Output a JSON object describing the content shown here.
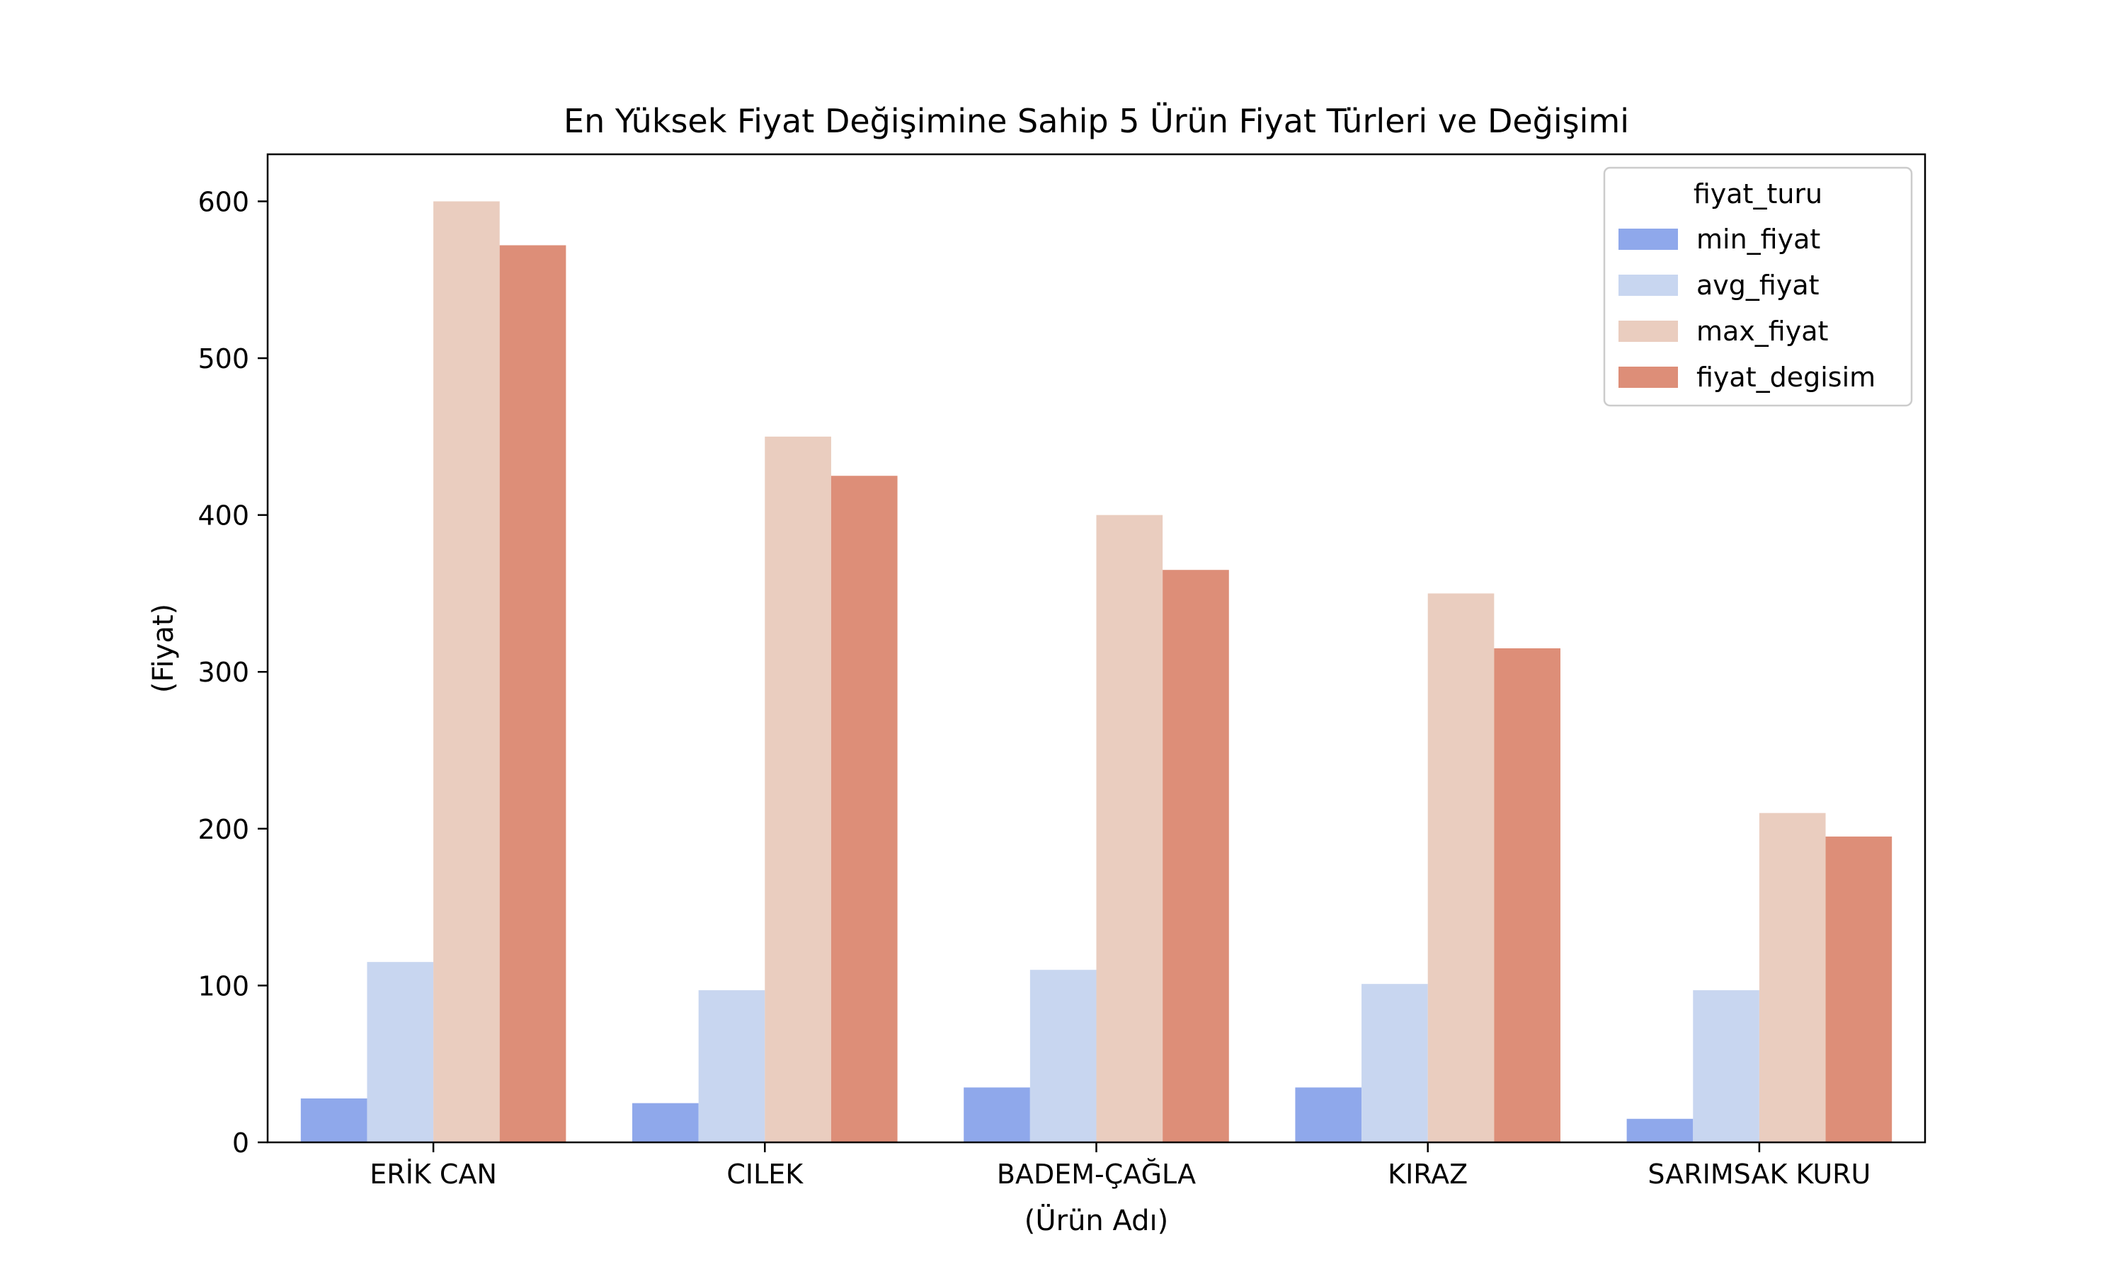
{
  "chart_data": {
    "type": "bar",
    "title": "En Yüksek Fiyat Değişimine Sahip 5 Ürün Fiyat Türleri ve Değişimi",
    "xlabel": "(Ürün Adı)",
    "ylabel": "(Fiyat)",
    "categories": [
      "ERİK  CAN",
      "CILEK",
      "BADEM-ÇAĞLA",
      "KIRAZ",
      "SARIMSAK  KURU"
    ],
    "ylim": [
      0,
      630
    ],
    "yticks": [
      0,
      100,
      200,
      300,
      400,
      500,
      600
    ],
    "grid": false,
    "legend": {
      "title": "fiyat_turu",
      "position": "top-right"
    },
    "series": [
      {
        "name": "min_fiyat",
        "color": "#8fa8eb",
        "values": [
          28,
          25,
          35,
          35,
          15
        ]
      },
      {
        "name": "avg_fiyat",
        "color": "#c8d6f0",
        "values": [
          115,
          97,
          110,
          101,
          97
        ]
      },
      {
        "name": "max_fiyat",
        "color": "#eacdbf",
        "values": [
          600,
          450,
          400,
          350,
          210
        ]
      },
      {
        "name": "fiyat_degisim",
        "color": "#dd8e78",
        "values": [
          572,
          425,
          365,
          315,
          195
        ]
      }
    ]
  }
}
